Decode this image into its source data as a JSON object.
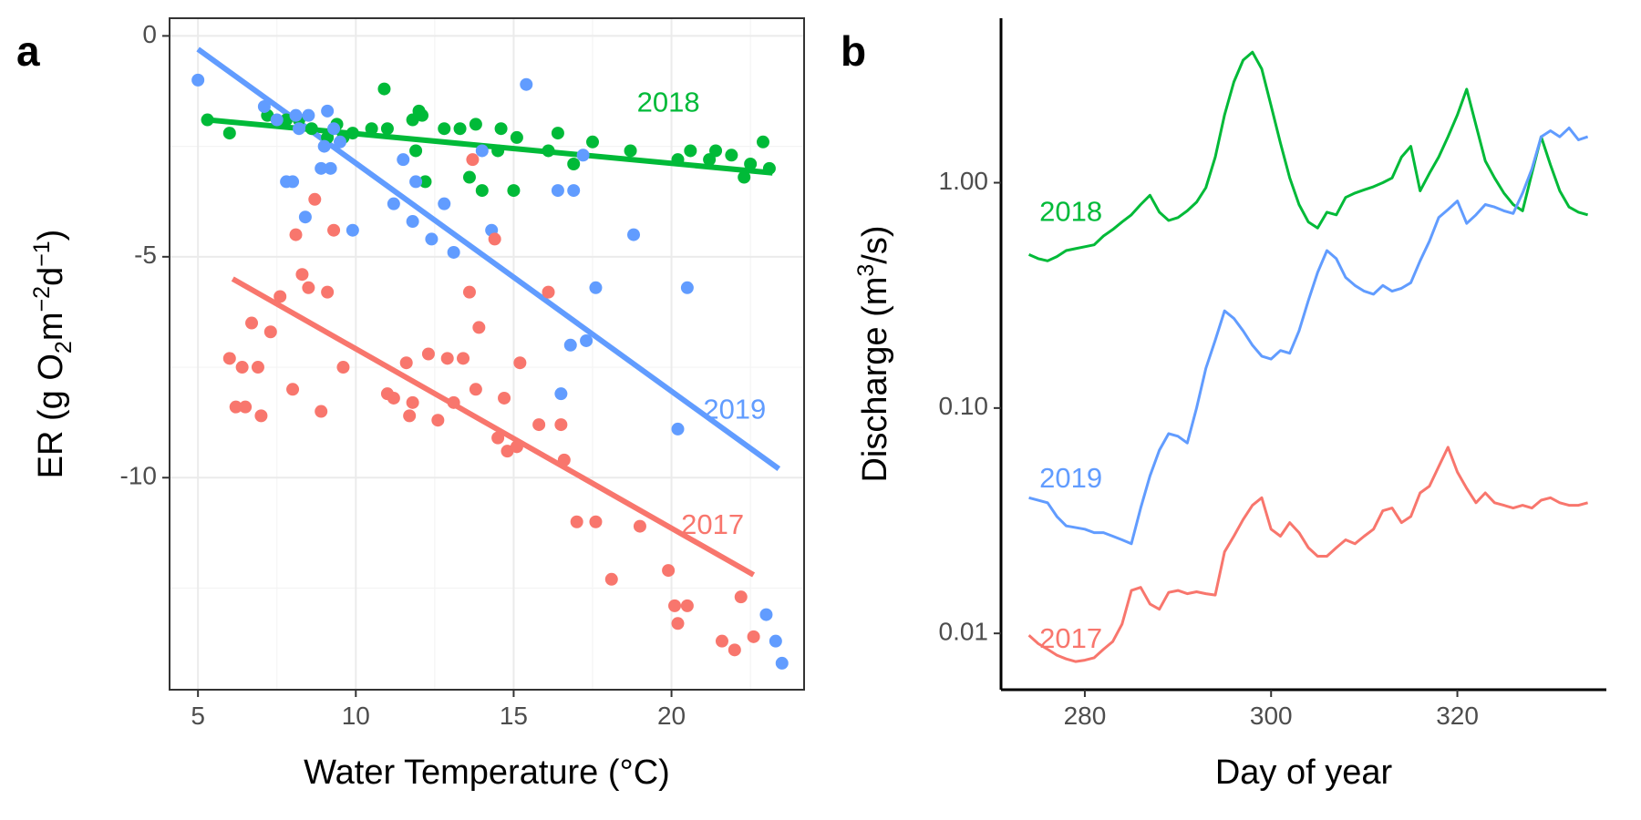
{
  "colors": {
    "2017": "#f8766d",
    "2018": "#00ba38",
    "2019": "#619cff"
  },
  "chart_data": [
    {
      "panel": "a",
      "type": "scatter",
      "xlabel": "Water Temperature (°C)",
      "ylabel_parts": {
        "pre": "ER (g O",
        "sub": "2",
        "mid": "m",
        "sup1": "−2",
        "mid2": "d",
        "sup2": "−1",
        "post": ")"
      },
      "xlim": [
        4.1,
        24.2
      ],
      "ylim": [
        -14.8,
        0.4
      ],
      "xticks": [
        5,
        10,
        15,
        20
      ],
      "xtick_labels": [
        "5",
        "10",
        "15",
        "20"
      ],
      "yticks": [
        0,
        -5,
        -10
      ],
      "ytick_labels": [
        "0",
        "-5",
        "-10"
      ],
      "grid": true,
      "series": [
        {
          "name": "2018",
          "color_key": "2018",
          "label": {
            "text": "2018",
            "x": 19.9,
            "y": -1.55
          },
          "points": [
            [
              5.3,
              -1.9
            ],
            [
              6,
              -2.2
            ],
            [
              7.2,
              -1.8
            ],
            [
              7.8,
              -1.9
            ],
            [
              8.2,
              -1.9
            ],
            [
              8.6,
              -2.1
            ],
            [
              9.1,
              -2.3
            ],
            [
              9.4,
              -2
            ],
            [
              9.6,
              -2.3
            ],
            [
              9.9,
              -2.2
            ],
            [
              10.5,
              -2.1
            ],
            [
              10.9,
              -1.2
            ],
            [
              11,
              -2.1
            ],
            [
              11.8,
              -1.9
            ],
            [
              11.9,
              -2.6
            ],
            [
              12,
              -1.7
            ],
            [
              12.1,
              -1.8
            ],
            [
              12.2,
              -3.3
            ],
            [
              12.8,
              -2.1
            ],
            [
              13.3,
              -2.1
            ],
            [
              13.6,
              -3.2
            ],
            [
              13.8,
              -2
            ],
            [
              14,
              -3.5
            ],
            [
              14.5,
              -2.6
            ],
            [
              14.6,
              -2.1
            ],
            [
              15,
              -3.5
            ],
            [
              15.1,
              -2.3
            ],
            [
              16.1,
              -2.6
            ],
            [
              16.4,
              -2.2
            ],
            [
              16.9,
              -2.9
            ],
            [
              17.5,
              -2.4
            ],
            [
              18.7,
              -2.6
            ],
            [
              20.2,
              -2.8
            ],
            [
              20.6,
              -2.6
            ],
            [
              21.2,
              -2.8
            ],
            [
              21.4,
              -2.6
            ],
            [
              21.9,
              -2.7
            ],
            [
              22.3,
              -3.2
            ],
            [
              22.5,
              -2.9
            ],
            [
              22.9,
              -2.4
            ],
            [
              23.1,
              -3
            ]
          ],
          "fit": [
            [
              5.3,
              -1.9
            ],
            [
              23.2,
              -3.1
            ]
          ]
        },
        {
          "name": "2019",
          "color_key": "2019",
          "label": {
            "text": "2019",
            "x": 22.0,
            "y": -8.5
          },
          "points": [
            [
              5,
              -1
            ],
            [
              7.1,
              -1.6
            ],
            [
              7.5,
              -1.9
            ],
            [
              7.8,
              -3.3
            ],
            [
              8,
              -3.3
            ],
            [
              8.1,
              -1.8
            ],
            [
              8.2,
              -2.1
            ],
            [
              8.4,
              -4.1
            ],
            [
              8.5,
              -1.8
            ],
            [
              8.9,
              -3
            ],
            [
              9,
              -2.5
            ],
            [
              9.1,
              -1.7
            ],
            [
              9.2,
              -3
            ],
            [
              9.3,
              -2.1
            ],
            [
              9.5,
              -2.4
            ],
            [
              9.9,
              -4.4
            ],
            [
              11.2,
              -3.8
            ],
            [
              11.5,
              -2.8
            ],
            [
              11.8,
              -4.2
            ],
            [
              11.9,
              -3.3
            ],
            [
              12.4,
              -4.6
            ],
            [
              12.8,
              -3.8
            ],
            [
              13.1,
              -4.9
            ],
            [
              14,
              -2.6
            ],
            [
              14.3,
              -4.4
            ],
            [
              15.4,
              -1.1
            ],
            [
              16.4,
              -3.5
            ],
            [
              16.5,
              -8.1
            ],
            [
              16.8,
              -7
            ],
            [
              16.9,
              -3.5
            ],
            [
              17.2,
              -2.7
            ],
            [
              17.3,
              -6.9
            ],
            [
              17.6,
              -5.7
            ],
            [
              18.8,
              -4.5
            ],
            [
              20.2,
              -8.9
            ],
            [
              20.5,
              -5.7
            ],
            [
              23,
              -13.1
            ],
            [
              23.3,
              -13.7
            ],
            [
              23.5,
              -14.2
            ]
          ],
          "fit": [
            [
              5,
              -0.3
            ],
            [
              23.4,
              -9.8
            ]
          ]
        },
        {
          "name": "2017",
          "color_key": "2017",
          "label": {
            "text": "2017",
            "x": 21.3,
            "y": -11.1
          },
          "points": [
            [
              6,
              -7.3
            ],
            [
              6.2,
              -8.4
            ],
            [
              6.4,
              -7.5
            ],
            [
              6.5,
              -8.4
            ],
            [
              6.7,
              -6.5
            ],
            [
              6.9,
              -7.5
            ],
            [
              7,
              -8.6
            ],
            [
              7.3,
              -6.7
            ],
            [
              7.6,
              -5.9
            ],
            [
              8,
              -8
            ],
            [
              8.1,
              -4.5
            ],
            [
              8.3,
              -5.4
            ],
            [
              8.5,
              -5.7
            ],
            [
              8.7,
              -3.7
            ],
            [
              8.9,
              -8.5
            ],
            [
              9.1,
              -5.8
            ],
            [
              9.3,
              -4.4
            ],
            [
              9.6,
              -7.5
            ],
            [
              11,
              -8.1
            ],
            [
              11.2,
              -8.2
            ],
            [
              11.6,
              -7.4
            ],
            [
              11.7,
              -8.6
            ],
            [
              11.8,
              -8.3
            ],
            [
              12.3,
              -7.2
            ],
            [
              12.6,
              -8.7
            ],
            [
              12.9,
              -7.3
            ],
            [
              13.1,
              -8.3
            ],
            [
              13.4,
              -7.3
            ],
            [
              13.6,
              -5.8
            ],
            [
              13.8,
              -8
            ],
            [
              13.7,
              -2.8
            ],
            [
              13.9,
              -6.6
            ],
            [
              14.4,
              -4.6
            ],
            [
              14.5,
              -9.1
            ],
            [
              14.7,
              -8.2
            ],
            [
              14.8,
              -9.4
            ],
            [
              15.1,
              -9.3
            ],
            [
              15.2,
              -7.4
            ],
            [
              15.8,
              -8.8
            ],
            [
              16.1,
              -5.8
            ],
            [
              16.5,
              -8.8
            ],
            [
              16.6,
              -9.6
            ],
            [
              17,
              -11
            ],
            [
              17.6,
              -11
            ],
            [
              18.1,
              -12.3
            ],
            [
              19,
              -11.1
            ],
            [
              19.9,
              -12.1
            ],
            [
              20.1,
              -12.9
            ],
            [
              20.2,
              -13.3
            ],
            [
              20.5,
              -12.9
            ],
            [
              21.6,
              -13.7
            ],
            [
              22,
              -13.9
            ],
            [
              22.2,
              -12.7
            ],
            [
              22.6,
              -13.6
            ]
          ],
          "fit": [
            [
              6.1,
              -5.5
            ],
            [
              22.6,
              -12.2
            ]
          ]
        }
      ]
    },
    {
      "panel": "b",
      "type": "line",
      "xlabel": "Day of year",
      "ylabel_parts": {
        "pre": "Discharge (m",
        "sup": "3",
        "post": "/s)"
      },
      "xlim": [
        271,
        336
      ],
      "ylim_log10": [
        -2.25,
        0.73
      ],
      "yscale": "log",
      "xticks": [
        280,
        300,
        320
      ],
      "xtick_labels": [
        "280",
        "300",
        "320"
      ],
      "yticks": [
        1,
        0.1,
        0.01
      ],
      "ytick_labels": [
        "1.00",
        "0.10",
        "0.01"
      ],
      "grid": false,
      "series": [
        {
          "name": "2018",
          "color_key": "2018",
          "label": {
            "text": "2018",
            "x": 278.5,
            "y": 0.73
          },
          "x": [
            274,
            275,
            276,
            277,
            278,
            279,
            280,
            281,
            282,
            283,
            284,
            285,
            286,
            287,
            288,
            289,
            290,
            291,
            292,
            293,
            294,
            295,
            296,
            297,
            298,
            299,
            300,
            301,
            302,
            303,
            304,
            305,
            306,
            307,
            308,
            309,
            310,
            311,
            312,
            313,
            314,
            315,
            316,
            317,
            318,
            319,
            320,
            321,
            322,
            323,
            324,
            325,
            326,
            327,
            328,
            329,
            330,
            331,
            332,
            333,
            334
          ],
          "y": [
            0.48,
            0.46,
            0.45,
            0.47,
            0.5,
            0.51,
            0.52,
            0.53,
            0.58,
            0.62,
            0.67,
            0.72,
            0.8,
            0.88,
            0.74,
            0.68,
            0.7,
            0.75,
            0.82,
            0.95,
            1.3,
            2.0,
            2.8,
            3.5,
            3.8,
            3.2,
            2.2,
            1.5,
            1.05,
            0.8,
            0.67,
            0.63,
            0.74,
            0.72,
            0.86,
            0.9,
            0.93,
            0.96,
            1.0,
            1.05,
            1.3,
            1.45,
            0.92,
            1.1,
            1.3,
            1.6,
            2.0,
            2.6,
            1.8,
            1.25,
            1.05,
            0.9,
            0.8,
            0.75,
            1.1,
            1.6,
            1.2,
            0.92,
            0.78,
            0.74,
            0.72
          ]
        },
        {
          "name": "2019",
          "color_key": "2019",
          "label": {
            "text": "2019",
            "x": 278.5,
            "y": 0.048
          },
          "x": [
            274,
            276,
            277,
            278,
            280,
            281,
            282,
            283,
            284,
            285,
            286,
            287,
            288,
            289,
            290,
            291,
            292,
            293,
            294,
            295,
            296,
            297,
            298,
            299,
            300,
            301,
            302,
            303,
            304,
            305,
            306,
            307,
            308,
            309,
            310,
            311,
            312,
            313,
            314,
            315,
            316,
            317,
            318,
            319,
            320,
            321,
            322,
            323,
            324,
            325,
            326,
            327,
            328,
            329,
            330,
            331,
            332,
            333,
            334
          ],
          "y": [
            0.04,
            0.038,
            0.033,
            0.03,
            0.029,
            0.028,
            0.028,
            0.027,
            0.026,
            0.025,
            0.036,
            0.05,
            0.065,
            0.077,
            0.075,
            0.07,
            0.1,
            0.15,
            0.2,
            0.27,
            0.25,
            0.22,
            0.19,
            0.17,
            0.165,
            0.18,
            0.175,
            0.22,
            0.3,
            0.4,
            0.5,
            0.46,
            0.38,
            0.35,
            0.33,
            0.32,
            0.35,
            0.33,
            0.34,
            0.36,
            0.45,
            0.55,
            0.7,
            0.76,
            0.83,
            0.66,
            0.72,
            0.8,
            0.78,
            0.75,
            0.73,
            0.9,
            1.15,
            1.6,
            1.7,
            1.6,
            1.75,
            1.55,
            1.6
          ]
        },
        {
          "name": "2017",
          "color_key": "2017",
          "label": {
            "text": "2017",
            "x": 278.5,
            "y": 0.0093
          },
          "x": [
            274,
            275,
            276,
            277,
            278,
            279,
            280,
            281,
            282,
            283,
            284,
            285,
            286,
            287,
            288,
            289,
            290,
            291,
            292,
            293,
            294,
            295,
            296,
            297,
            298,
            299,
            300,
            301,
            302,
            303,
            304,
            305,
            306,
            307,
            308,
            309,
            310,
            311,
            312,
            313,
            314,
            315,
            316,
            317,
            318,
            319,
            320,
            321,
            322,
            323,
            324,
            325,
            326,
            327,
            328,
            329,
            330,
            331,
            332,
            333,
            334
          ],
          "y": [
            0.0098,
            0.009,
            0.0085,
            0.008,
            0.0077,
            0.0075,
            0.0076,
            0.0078,
            0.0085,
            0.0092,
            0.011,
            0.0155,
            0.016,
            0.0135,
            0.0128,
            0.0152,
            0.0155,
            0.015,
            0.0153,
            0.015,
            0.0148,
            0.023,
            0.027,
            0.032,
            0.037,
            0.04,
            0.029,
            0.027,
            0.031,
            0.028,
            0.024,
            0.022,
            0.022,
            0.024,
            0.026,
            0.025,
            0.027,
            0.029,
            0.035,
            0.036,
            0.031,
            0.033,
            0.042,
            0.045,
            0.055,
            0.067,
            0.052,
            0.044,
            0.038,
            0.042,
            0.038,
            0.037,
            0.036,
            0.037,
            0.036,
            0.039,
            0.04,
            0.038,
            0.037,
            0.037,
            0.038
          ]
        }
      ]
    }
  ]
}
